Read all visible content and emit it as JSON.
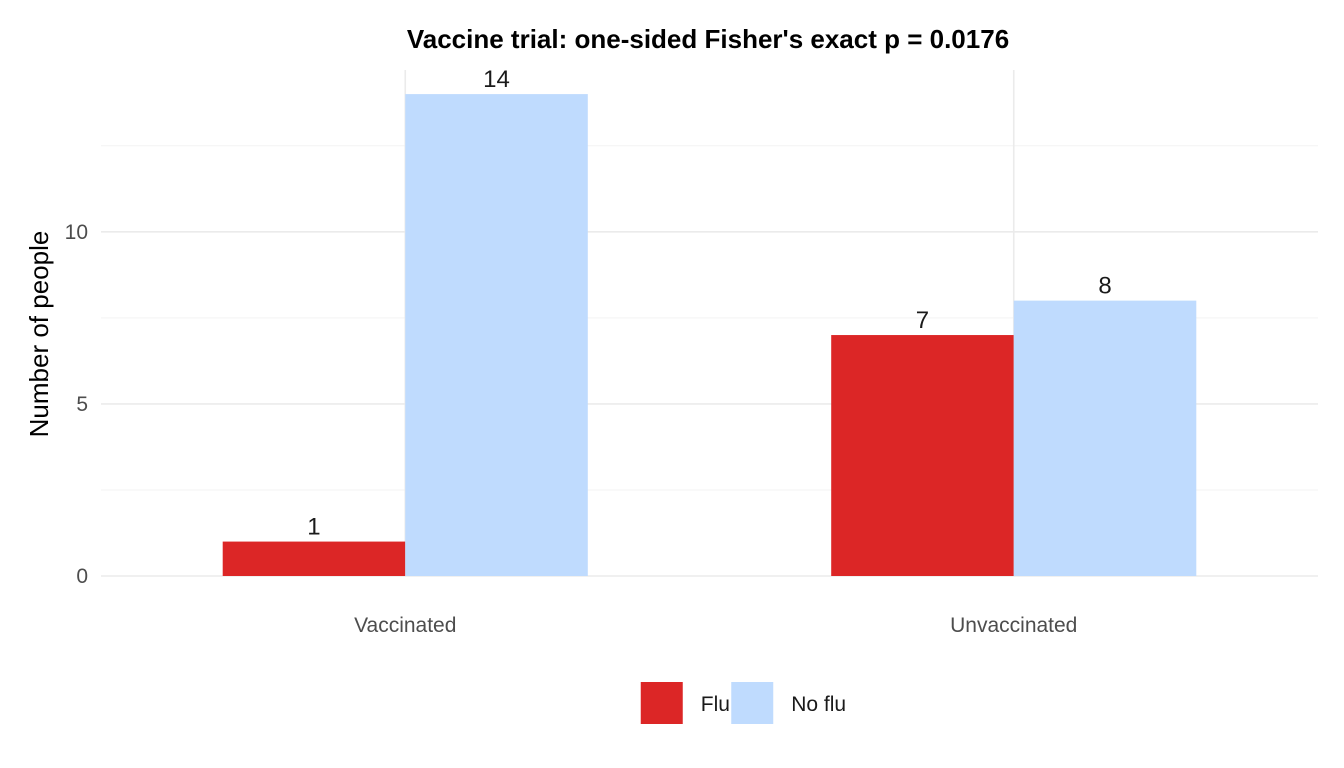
{
  "chart_data": {
    "type": "bar",
    "title": "Vaccine trial: one-sided Fisher's exact p = 0.0176",
    "xlabel": "",
    "ylabel": "Number of people",
    "categories": [
      "Vaccinated",
      "Unvaccinated"
    ],
    "series": [
      {
        "name": "Flu",
        "color": "#dc2626",
        "values": [
          1,
          7
        ]
      },
      {
        "name": "No flu",
        "color": "#bfdbfe",
        "values": [
          14,
          8
        ]
      }
    ],
    "ylim": [
      0,
      14.7
    ],
    "yticks": [
      0,
      5,
      10
    ],
    "grid": true,
    "legend_position": "bottom",
    "show_data_labels": true
  }
}
